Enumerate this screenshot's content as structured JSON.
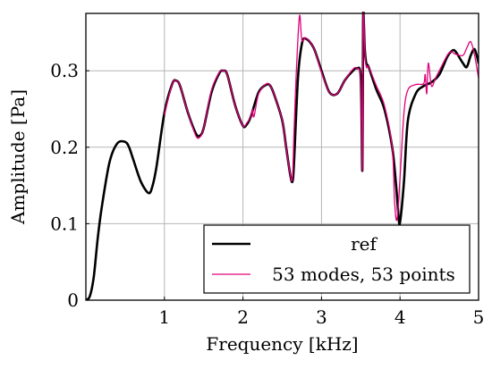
{
  "chart_data": {
    "type": "line",
    "xlabel": "Frequency [kHz]",
    "ylabel": "Amplitude [Pa]",
    "xlim": [
      0,
      5
    ],
    "ylim": [
      0,
      0.375
    ],
    "x_ticks": [
      {
        "value": 1,
        "label": "1"
      },
      {
        "value": 2,
        "label": "2"
      },
      {
        "value": 3,
        "label": "3"
      },
      {
        "value": 4,
        "label": "4"
      },
      {
        "value": 5,
        "label": "5"
      }
    ],
    "y_ticks": [
      {
        "value": 0,
        "label": "0"
      },
      {
        "value": 0.1,
        "label": "0.1"
      },
      {
        "value": 0.2,
        "label": "0.2"
      },
      {
        "value": 0.3,
        "label": "0.3"
      }
    ],
    "grid": true,
    "legend_position": "bottom-right",
    "series": [
      {
        "name": "ref",
        "color": "#000000",
        "x": [
          0,
          0.05,
          0.1,
          0.15,
          0.2,
          0.3,
          0.4,
          0.5,
          0.55,
          0.6,
          0.7,
          0.8,
          0.85,
          0.9,
          1.0,
          1.1,
          1.15,
          1.2,
          1.3,
          1.4,
          1.45,
          1.5,
          1.6,
          1.7,
          1.75,
          1.8,
          1.9,
          2.0,
          2.05,
          2.1,
          2.2,
          2.3,
          2.35,
          2.4,
          2.5,
          2.55,
          2.6,
          2.63,
          2.65,
          2.7,
          2.75,
          2.8,
          2.9,
          3.0,
          3.1,
          3.2,
          3.3,
          3.4,
          3.45,
          3.5,
          3.52,
          3.53,
          3.54,
          3.55,
          3.57,
          3.6,
          3.7,
          3.8,
          3.9,
          3.95,
          3.98,
          4.0,
          4.05,
          4.1,
          4.2,
          4.3,
          4.4,
          4.5,
          4.6,
          4.65,
          4.7,
          4.8,
          4.85,
          4.9,
          4.95,
          5.0
        ],
        "values": [
          0,
          0.005,
          0.03,
          0.08,
          0.12,
          0.18,
          0.205,
          0.207,
          0.2,
          0.185,
          0.155,
          0.14,
          0.15,
          0.175,
          0.245,
          0.283,
          0.287,
          0.28,
          0.245,
          0.218,
          0.215,
          0.225,
          0.272,
          0.297,
          0.3,
          0.295,
          0.255,
          0.228,
          0.23,
          0.24,
          0.272,
          0.282,
          0.28,
          0.268,
          0.235,
          0.2,
          0.165,
          0.155,
          0.18,
          0.29,
          0.335,
          0.342,
          0.33,
          0.3,
          0.272,
          0.27,
          0.288,
          0.3,
          0.303,
          0.29,
          0.17,
          0.365,
          0.36,
          0.33,
          0.31,
          0.305,
          0.275,
          0.25,
          0.2,
          0.15,
          0.11,
          0.102,
          0.155,
          0.235,
          0.27,
          0.28,
          0.285,
          0.295,
          0.318,
          0.325,
          0.326,
          0.31,
          0.305,
          0.32,
          0.328,
          0.31
        ]
      },
      {
        "name": "53 modes, 53 points",
        "color": "#e0007a",
        "x": [
          1.0,
          1.1,
          1.15,
          1.2,
          1.3,
          1.4,
          1.45,
          1.5,
          1.6,
          1.7,
          1.75,
          1.8,
          1.9,
          2.0,
          2.05,
          2.1,
          2.12,
          2.14,
          2.2,
          2.3,
          2.35,
          2.4,
          2.5,
          2.55,
          2.6,
          2.63,
          2.65,
          2.68,
          2.72,
          2.75,
          2.8,
          2.9,
          3.0,
          3.1,
          3.2,
          3.3,
          3.4,
          3.45,
          3.5,
          3.52,
          3.53,
          3.54,
          3.55,
          3.57,
          3.6,
          3.7,
          3.8,
          3.9,
          3.93,
          3.96,
          4.0,
          4.05,
          4.1,
          4.2,
          4.3,
          4.32,
          4.34,
          4.36,
          4.4,
          4.45,
          4.5,
          4.6,
          4.65,
          4.7,
          4.8,
          4.85,
          4.9,
          4.95,
          5.0
        ],
        "values": [
          0.243,
          0.283,
          0.287,
          0.28,
          0.245,
          0.215,
          0.213,
          0.225,
          0.275,
          0.298,
          0.3,
          0.295,
          0.255,
          0.228,
          0.232,
          0.24,
          0.25,
          0.24,
          0.27,
          0.283,
          0.28,
          0.268,
          0.235,
          0.2,
          0.165,
          0.16,
          0.22,
          0.3,
          0.372,
          0.34,
          0.343,
          0.33,
          0.298,
          0.272,
          0.27,
          0.288,
          0.302,
          0.303,
          0.288,
          0.17,
          0.36,
          0.365,
          0.33,
          0.305,
          0.305,
          0.28,
          0.255,
          0.2,
          0.13,
          0.105,
          0.16,
          0.245,
          0.275,
          0.282,
          0.283,
          0.295,
          0.27,
          0.31,
          0.28,
          0.29,
          0.3,
          0.32,
          0.325,
          0.322,
          0.32,
          0.33,
          0.338,
          0.32,
          0.29
        ]
      }
    ]
  }
}
